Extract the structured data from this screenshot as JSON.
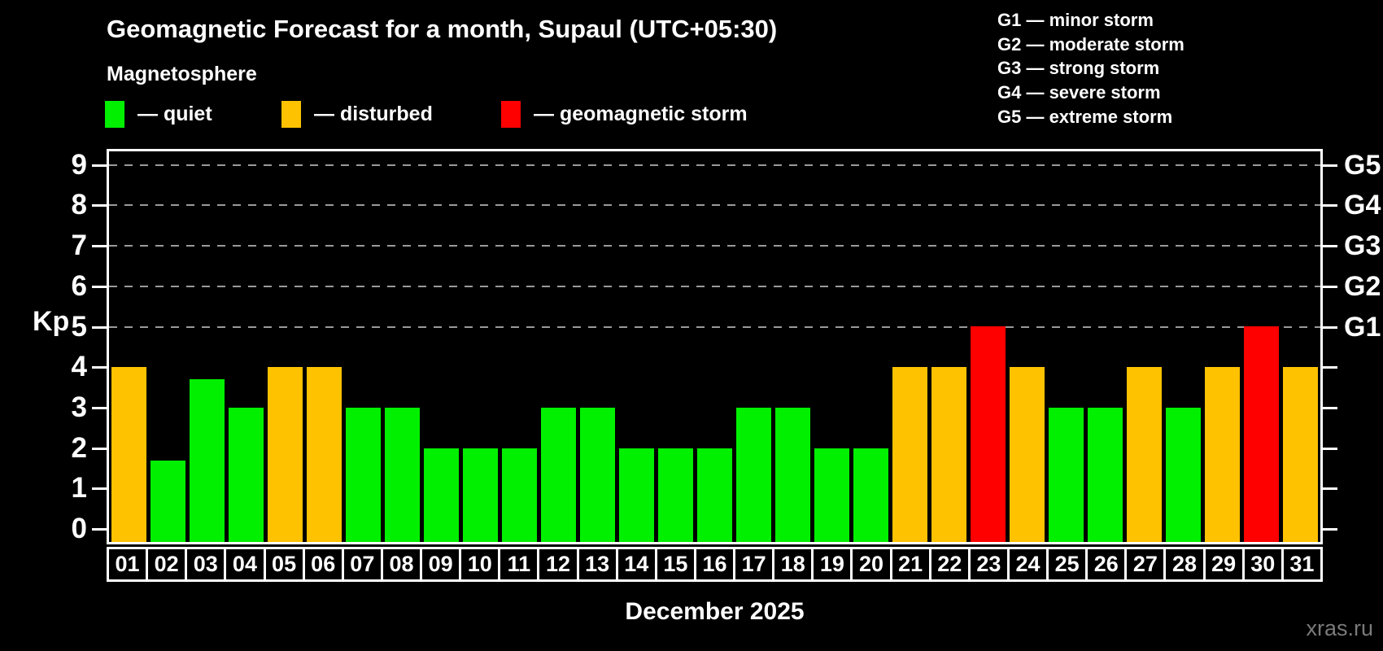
{
  "header": {
    "title": "Geomagnetic Forecast for a month, Supaul (UTC+05:30)",
    "subtitle": "Magnetosphere"
  },
  "legend": {
    "items": [
      {
        "key": "quiet",
        "label": "— quiet"
      },
      {
        "key": "disturbed",
        "label": "— disturbed"
      },
      {
        "key": "storm",
        "label": "— geomagnetic storm"
      }
    ]
  },
  "g_legend": {
    "lines": [
      "G1 — minor storm",
      "G2 — moderate storm",
      "G3 — strong storm",
      "G4 — severe storm",
      "G5 — extreme storm"
    ]
  },
  "palette": {
    "quiet": "#00f000",
    "disturbed": "#ffc200",
    "storm": "#ff0000",
    "grid": "#9a9a9a",
    "frame": "#ffffff",
    "watermark_text": "#7a7a7a"
  },
  "axes": {
    "y_title": "Kp",
    "kp_ticks": [
      0,
      1,
      2,
      3,
      4,
      5,
      6,
      7,
      8,
      9
    ],
    "g_labels": [
      {
        "kp": 5,
        "text": "G1"
      },
      {
        "kp": 6,
        "text": "G2"
      },
      {
        "kp": 7,
        "text": "G3"
      },
      {
        "kp": 8,
        "text": "G4"
      },
      {
        "kp": 9,
        "text": "G5"
      }
    ],
    "x_title": "December 2025"
  },
  "chart_data": {
    "type": "bar",
    "title": "Geomagnetic Forecast for a month, Supaul (UTC+05:30)",
    "xlabel": "December 2025",
    "ylabel": "Kp",
    "ylim": [
      0,
      9.4
    ],
    "grid_levels": [
      5,
      6,
      7,
      8,
      9
    ],
    "legend_position": "top-left",
    "categories": [
      "01",
      "02",
      "03",
      "04",
      "05",
      "06",
      "07",
      "08",
      "09",
      "10",
      "11",
      "12",
      "13",
      "14",
      "15",
      "16",
      "17",
      "18",
      "19",
      "20",
      "21",
      "22",
      "23",
      "24",
      "25",
      "26",
      "27",
      "28",
      "29",
      "30",
      "31"
    ],
    "values": [
      4,
      1.7,
      3.7,
      3,
      4,
      4,
      3,
      3,
      2,
      2,
      2,
      3,
      3,
      2,
      2,
      2,
      3,
      3,
      2,
      2,
      4,
      4,
      5,
      4,
      3,
      3,
      4,
      3,
      4,
      5,
      4
    ],
    "condition": [
      "disturbed",
      "quiet",
      "quiet",
      "quiet",
      "disturbed",
      "disturbed",
      "quiet",
      "quiet",
      "quiet",
      "quiet",
      "quiet",
      "quiet",
      "quiet",
      "quiet",
      "quiet",
      "quiet",
      "quiet",
      "quiet",
      "quiet",
      "quiet",
      "disturbed",
      "disturbed",
      "storm",
      "disturbed",
      "quiet",
      "quiet",
      "disturbed",
      "quiet",
      "disturbed",
      "storm",
      "disturbed"
    ]
  },
  "watermark": "xras.ru"
}
